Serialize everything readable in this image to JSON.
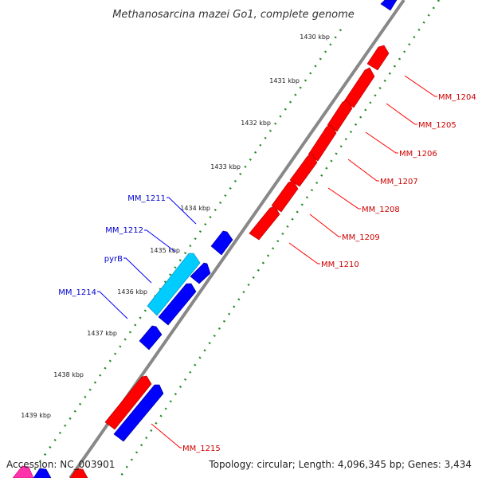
{
  "title": "Methanosarcina mazei Go1, complete genome",
  "footer": {
    "accession": "Accession: NC_003901",
    "summary": "Topology: circular; Length: 4,096,345 bp; Genes: 3,434"
  },
  "colors": {
    "forward_gene": "#ff0000",
    "reverse_gene": "#0000ff",
    "rna_gene": "#00ccff",
    "backbone": "#888888",
    "ticks": "#228b22",
    "forward_label": "#cc0000",
    "reverse_label": "#0000cc"
  },
  "ruler": [
    {
      "label": "1430 kbp"
    },
    {
      "label": "1431 kbp"
    },
    {
      "label": "1432 kbp"
    },
    {
      "label": "1433 kbp"
    },
    {
      "label": "1434 kbp"
    },
    {
      "label": "1435 kbp"
    },
    {
      "label": "1436 kbp"
    },
    {
      "label": "1437 kbp"
    },
    {
      "label": "1438 kbp"
    },
    {
      "label": "1439 kbp"
    }
  ],
  "forward_labels": [
    {
      "label": "MM_1204"
    },
    {
      "label": "MM_1205"
    },
    {
      "label": "MM_1206"
    },
    {
      "label": "MM_1207"
    },
    {
      "label": "MM_1208"
    },
    {
      "label": "MM_1209"
    },
    {
      "label": "MM_1210"
    },
    {
      "label": "MM_1215"
    }
  ],
  "reverse_labels": [
    {
      "label": "MM_1211"
    },
    {
      "label": "MM_1212"
    },
    {
      "label": "pyrB"
    },
    {
      "label": "MM_1214"
    }
  ]
}
